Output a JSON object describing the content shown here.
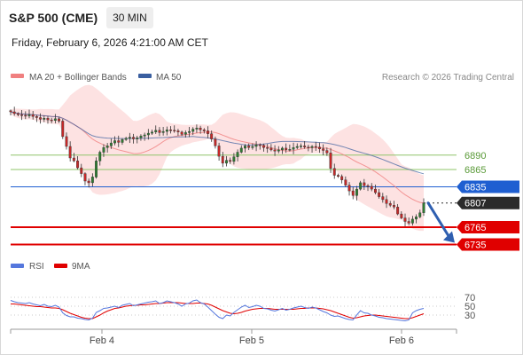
{
  "header": {
    "title": "S&P 500 (CME)",
    "timeframe": "30 MIN",
    "datetime": "Friday, February 6, 2026 4:21:00 AM CET"
  },
  "colors": {
    "candle_up": "#2e7d32",
    "candle_down": "#c62828",
    "bollinger_fill": "#fde0e0",
    "ma20": "#f08080",
    "ma50": "#3a5fa0",
    "support": "#e00000",
    "resistance": "#8fc46a",
    "pivot": "#1f5fd1",
    "last": "#2b2b2b",
    "arrow": "#2f5fb0",
    "rsi": "#5577dd",
    "rsi_ma": "#e00000",
    "grid": "#bbbbbb"
  },
  "chart_data": [
    {
      "type": "candlestick",
      "legend": [
        {
          "label": "MA 20 + Bollinger Bands",
          "icon": "legend-swatch-ma20"
        },
        {
          "label": "MA 50",
          "icon": "legend-swatch-ma50"
        }
      ],
      "copyright": "Research © 2026 Trading Central",
      "x_ticks": [
        "Feb 4",
        "Feb 5",
        "Feb 6"
      ],
      "y_range": [
        6705,
        7005
      ],
      "levels": [
        {
          "value": 6890,
          "label": "6890",
          "kind": "resistance"
        },
        {
          "value": 6865,
          "label": "6865",
          "kind": "resistance"
        },
        {
          "value": 6835,
          "label": "6835",
          "kind": "pivot"
        },
        {
          "value": 6807,
          "label": "6807",
          "kind": "last"
        },
        {
          "value": 6765,
          "label": "6765",
          "kind": "support"
        },
        {
          "value": 6735,
          "label": "6735",
          "kind": "support"
        }
      ],
      "close": [
        6965,
        6962,
        6960,
        6959,
        6958,
        6960,
        6957,
        6955,
        6952,
        6954,
        6951,
        6950,
        6953,
        6949,
        6922,
        6905,
        6885,
        6880,
        6868,
        6858,
        6845,
        6842,
        6852,
        6880,
        6895,
        6903,
        6906,
        6911,
        6915,
        6912,
        6917,
        6919,
        6921,
        6918,
        6920,
        6923,
        6925,
        6928,
        6930,
        6933,
        6929,
        6931,
        6934,
        6933,
        6932,
        6930,
        6926,
        6929,
        6931,
        6935,
        6937,
        6934,
        6932,
        6927,
        6918,
        6906,
        6888,
        6876,
        6881,
        6879,
        6887,
        6895,
        6902,
        6906,
        6903,
        6905,
        6908,
        6907,
        6903,
        6902,
        6899,
        6897,
        6899,
        6902,
        6899,
        6900,
        6903,
        6905,
        6906,
        6904,
        6903,
        6905,
        6904,
        6901,
        6898,
        6894,
        6867,
        6855,
        6853,
        6847,
        6838,
        6828,
        6820,
        6831,
        6842,
        6837,
        6836,
        6831,
        6825,
        6818,
        6813,
        6806,
        6803,
        6800,
        6788,
        6781,
        6775,
        6772,
        6779,
        6783,
        6790,
        6807
      ]
    },
    {
      "type": "line",
      "title": "RSI",
      "legend": [
        {
          "label": "RSI",
          "icon": "legend-swatch-rsi"
        },
        {
          "label": "9MA",
          "icon": "legend-swatch-9ma"
        }
      ],
      "y_range": [
        0,
        100
      ],
      "y_ticks": [
        70,
        50,
        30
      ],
      "rsi": [
        63,
        60,
        58,
        57,
        56,
        58,
        55,
        53,
        51,
        54,
        50,
        49,
        52,
        48,
        35,
        29,
        26,
        26,
        23,
        22,
        20,
        19,
        23,
        36,
        40,
        45,
        46,
        48,
        50,
        47,
        52,
        54,
        56,
        51,
        53,
        55,
        57,
        59,
        60,
        62,
        56,
        58,
        62,
        60,
        58,
        55,
        50,
        55,
        57,
        62,
        64,
        58,
        55,
        48,
        40,
        32,
        25,
        22,
        30,
        28,
        36,
        42,
        48,
        52,
        47,
        49,
        52,
        50,
        45,
        44,
        41,
        39,
        42,
        45,
        41,
        43,
        46,
        48,
        50,
        47,
        45,
        48,
        46,
        42,
        38,
        35,
        30,
        27,
        28,
        25,
        22,
        20,
        19,
        30,
        40,
        35,
        34,
        30,
        28,
        25,
        24,
        22,
        21,
        20,
        19,
        18,
        17,
        19,
        35,
        40,
        43,
        45
      ],
      "ma": [
        55,
        55,
        54,
        53,
        52,
        51,
        50,
        49,
        49,
        48,
        47,
        46,
        46,
        45,
        42,
        38,
        34,
        31,
        28,
        25,
        23,
        22,
        22,
        26,
        30,
        35,
        39,
        42,
        45,
        46,
        48,
        50,
        51,
        52,
        52,
        53,
        53,
        54,
        55,
        56,
        56,
        57,
        58,
        58,
        58,
        58,
        57,
        56,
        56,
        56,
        57,
        57,
        56,
        55,
        52,
        48,
        44,
        40,
        37,
        34,
        33,
        34,
        36,
        39,
        41,
        43,
        44,
        45,
        45,
        45,
        44,
        43,
        43,
        43,
        43,
        43,
        43,
        44,
        45,
        45,
        46,
        46,
        46,
        45,
        44,
        42,
        40,
        37,
        34,
        31,
        28,
        25,
        23,
        24,
        26,
        28,
        29,
        30,
        30,
        29,
        28,
        27,
        26,
        25,
        24,
        23,
        22,
        22,
        24,
        27,
        30,
        33
      ]
    }
  ]
}
